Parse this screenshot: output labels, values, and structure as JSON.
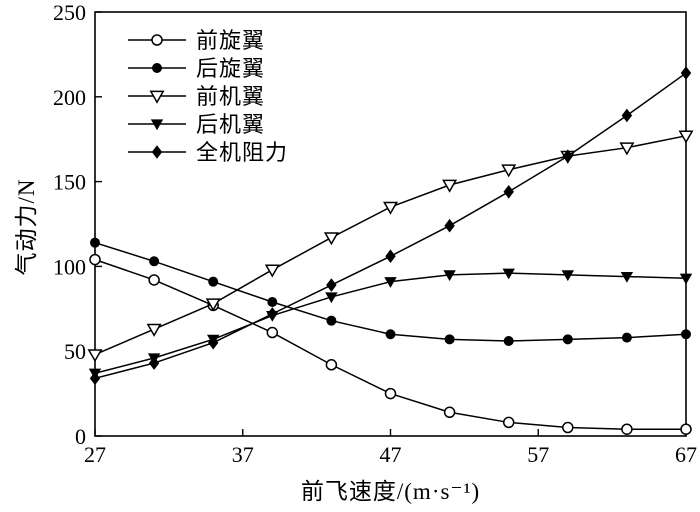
{
  "figure": {
    "xlabel": "前飞速度/(m·s⁻¹)",
    "ylabel": "气动力/N"
  },
  "chart_data": {
    "type": "line",
    "title": "",
    "xlabel": "前飞速度/(m·s⁻¹)",
    "ylabel": "气动力/N",
    "xlim": [
      27,
      67
    ],
    "ylim": [
      0,
      250
    ],
    "xticks": [
      27,
      37,
      47,
      57,
      67
    ],
    "yticks": [
      0,
      50,
      100,
      150,
      200,
      250
    ],
    "grid": false,
    "legend_position": "top-left-inside",
    "line_color": "#000000",
    "x": [
      27,
      31,
      35,
      39,
      43,
      47,
      51,
      55,
      59,
      63,
      67
    ],
    "series": [
      {
        "name": "前旋翼",
        "key": "front-rotor",
        "marker": "circle-open",
        "values": [
          104,
          92,
          77,
          61,
          42,
          25,
          14,
          8,
          5,
          4,
          4
        ]
      },
      {
        "name": "后旋翼",
        "key": "rear-rotor",
        "marker": "circle-filled",
        "values": [
          114,
          103,
          91,
          79,
          68,
          60,
          57,
          56,
          57,
          58,
          60
        ]
      },
      {
        "name": "前机翼",
        "key": "front-wing",
        "marker": "triangle-down-open",
        "values": [
          48,
          63,
          78,
          98,
          117,
          135,
          148,
          157,
          165,
          170,
          177
        ]
      },
      {
        "name": "后机翼",
        "key": "rear-wing",
        "marker": "triangle-down-filled",
        "values": [
          37,
          46,
          57,
          71,
          82,
          91,
          95,
          96,
          95,
          94,
          93
        ]
      },
      {
        "name": "全机阻力",
        "key": "total-drag",
        "marker": "diamond-filled",
        "values": [
          34,
          43,
          55,
          72,
          89,
          106,
          124,
          144,
          165,
          189,
          214
        ]
      }
    ]
  }
}
